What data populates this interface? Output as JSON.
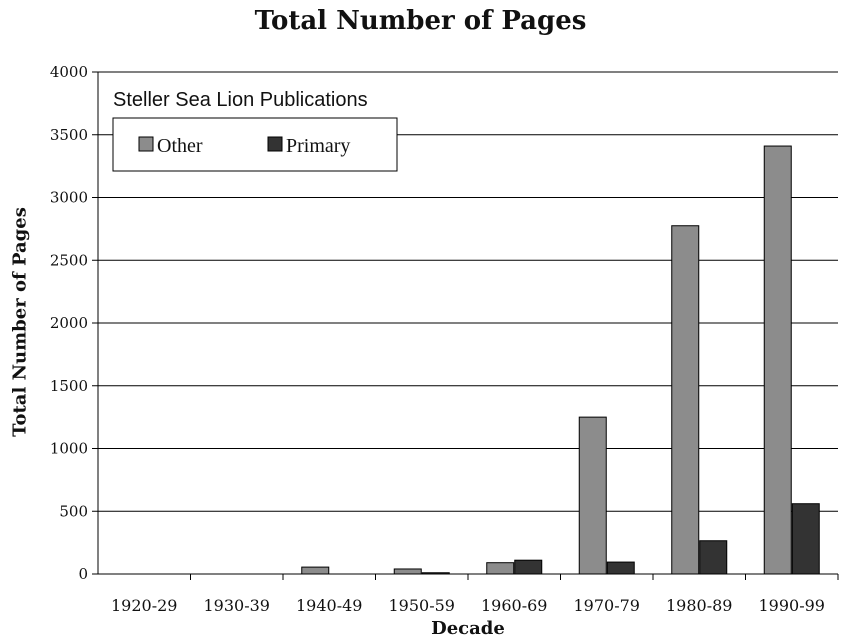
{
  "chart_data": {
    "type": "bar",
    "title": "Total Number of Pages",
    "subtitle": "Steller Sea Lion Publications",
    "xlabel": "Decade",
    "ylabel": "Total Number of Pages",
    "categories": [
      "1920-29",
      "1930-39",
      "1940-49",
      "1950-59",
      "1960-69",
      "1970-79",
      "1980-89",
      "1990-99"
    ],
    "series": [
      {
        "name": "Other",
        "color": "#8c8c8c",
        "values": [
          0,
          0,
          55,
          40,
          90,
          1250,
          2775,
          3410
        ]
      },
      {
        "name": "Primary",
        "color": "#333333",
        "values": [
          0,
          0,
          0,
          10,
          110,
          95,
          265,
          560
        ]
      }
    ],
    "ylim": [
      0,
      4000
    ],
    "yticks": [
      0,
      500,
      1000,
      1500,
      2000,
      2500,
      3000,
      3500,
      4000
    ],
    "grid": true,
    "legend_position": "top-left"
  }
}
